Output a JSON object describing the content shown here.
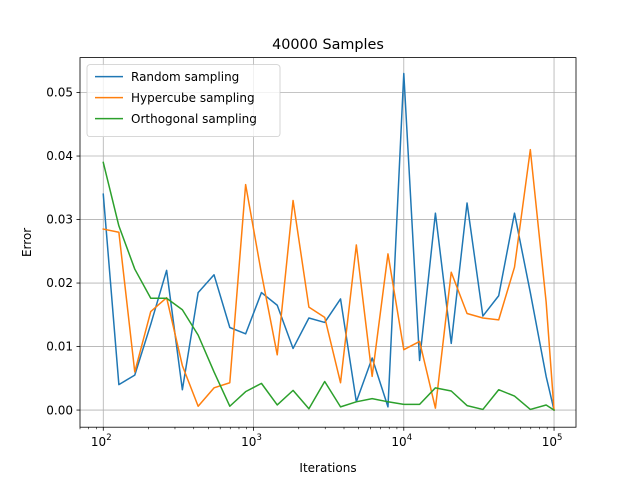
{
  "chart_data": {
    "type": "line",
    "title": "40000 Samples",
    "xlabel": "Iterations",
    "ylabel": "Error",
    "x_scale": "log",
    "xlim": [
      70,
      140000
    ],
    "ylim": [
      -0.0027,
      0.0555
    ],
    "grid": true,
    "legend_position": "upper-left",
    "x_ticks": [
      {
        "value": 100,
        "base": "10",
        "exp": "2"
      },
      {
        "value": 1000,
        "base": "10",
        "exp": "3"
      },
      {
        "value": 10000,
        "base": "10",
        "exp": "4"
      },
      {
        "value": 100000,
        "base": "10",
        "exp": "5"
      }
    ],
    "y_ticks": [
      {
        "value": 0.0,
        "label": "0.00"
      },
      {
        "value": 0.01,
        "label": "0.01"
      },
      {
        "value": 0.02,
        "label": "0.02"
      },
      {
        "value": 0.03,
        "label": "0.03"
      },
      {
        "value": 0.04,
        "label": "0.04"
      },
      {
        "value": 0.05,
        "label": "0.05"
      }
    ],
    "x": [
      100,
      127,
      162,
      207,
      264,
      336,
      428,
      546,
      695,
      886,
      1129,
      1438,
      1833,
      2336,
      2976,
      3793,
      4833,
      6158,
      7848,
      10000,
      12743,
      16238,
      20691,
      26367,
      33598,
      42813,
      54556,
      69519,
      88587,
      100000
    ],
    "series": [
      {
        "name": "Random sampling",
        "color": "#1f77b4",
        "values": [
          0.034,
          0.004,
          0.0055,
          0.0135,
          0.022,
          0.0032,
          0.0185,
          0.0213,
          0.013,
          0.012,
          0.0185,
          0.0165,
          0.0097,
          0.0145,
          0.0138,
          0.0175,
          0.0013,
          0.0082,
          0.0005,
          0.053,
          0.0078,
          0.031,
          0.0105,
          0.0326,
          0.0148,
          0.018,
          0.031,
          0.0185,
          0.0053,
          0.0
        ]
      },
      {
        "name": "Hypercube sampling",
        "color": "#ff7f0e",
        "values": [
          0.0285,
          0.028,
          0.006,
          0.0155,
          0.0177,
          0.007,
          0.0006,
          0.0035,
          0.0043,
          0.0355,
          0.0215,
          0.0087,
          0.033,
          0.0162,
          0.0146,
          0.0043,
          0.026,
          0.0053,
          0.0246,
          0.0095,
          0.0108,
          0.0003,
          0.0217,
          0.0152,
          0.0145,
          0.0142,
          0.0225,
          0.041,
          0.017,
          0.0
        ]
      },
      {
        "name": "Orthogonal sampling",
        "color": "#2ca02c",
        "values": [
          0.039,
          0.029,
          0.0222,
          0.0176,
          0.0176,
          0.0158,
          0.0118,
          0.006,
          0.0006,
          0.0029,
          0.0042,
          0.0008,
          0.0031,
          0.0002,
          0.0045,
          0.0005,
          0.0013,
          0.0018,
          0.0013,
          0.0009,
          0.0009,
          0.0035,
          0.003,
          0.0007,
          0.0001,
          0.0032,
          0.0022,
          0.0001,
          0.0008,
          0.0
        ]
      }
    ]
  }
}
